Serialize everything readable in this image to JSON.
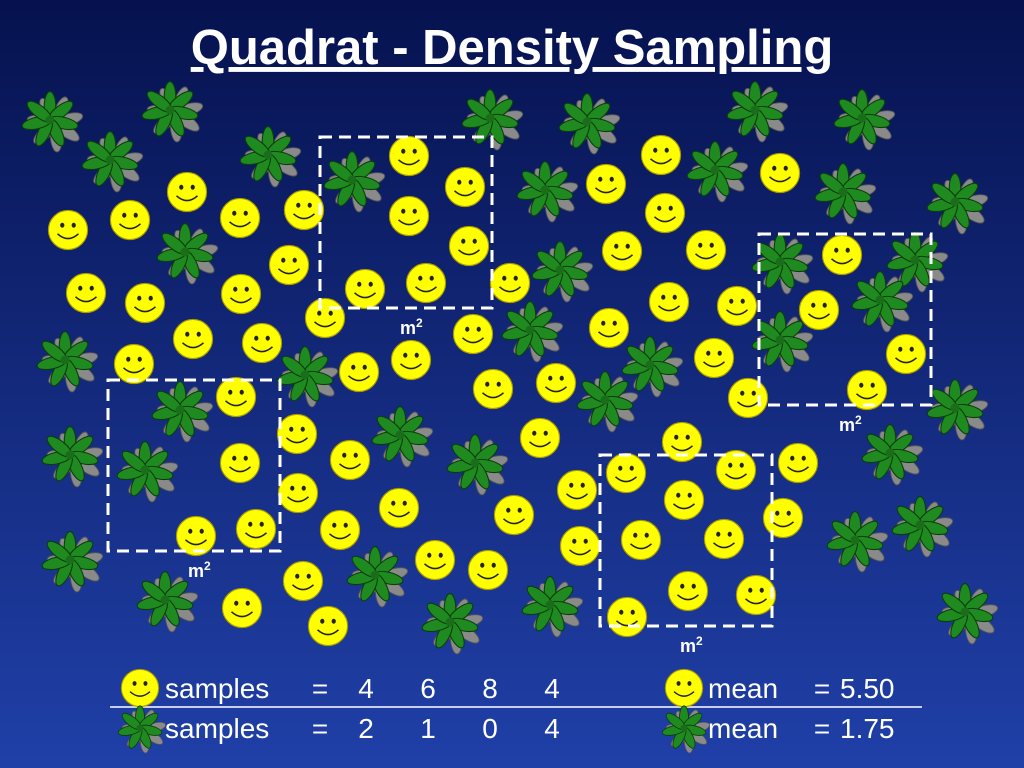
{
  "title": "Quadrat - Density Sampling",
  "quadrats": [
    {
      "label": "m",
      "superscript": "2"
    },
    {
      "label": "m",
      "superscript": "2"
    },
    {
      "label": "m",
      "superscript": "2"
    },
    {
      "label": "m",
      "superscript": "2"
    }
  ],
  "summary": {
    "rows": [
      {
        "label": "samples",
        "equals": "=",
        "counts": [
          4,
          6,
          8,
          4
        ],
        "mean_label": "mean",
        "mean_equals": "=",
        "mean": "5.50"
      },
      {
        "label": "samples",
        "equals": "=",
        "counts": [
          2,
          1,
          0,
          4
        ],
        "mean_label": "mean",
        "mean_equals": "=",
        "mean": "1.75"
      }
    ]
  }
}
